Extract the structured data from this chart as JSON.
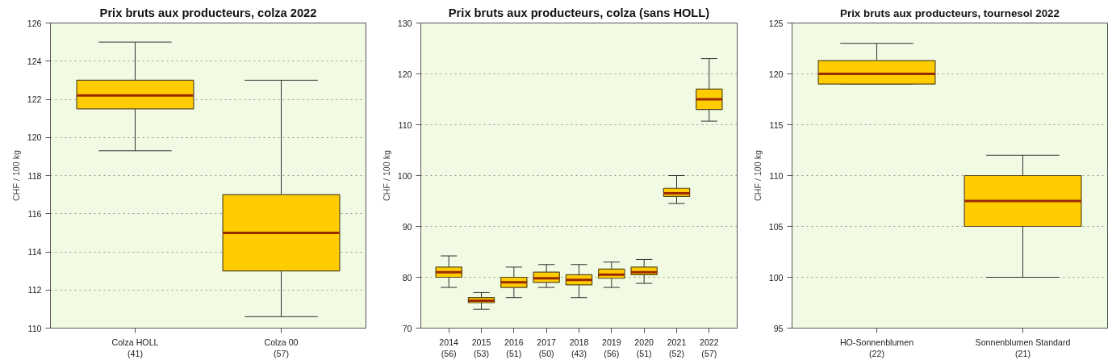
{
  "chart_data": [
    {
      "type": "box",
      "title": "Prix bruts aux producteurs, colza 2022",
      "ylabel": "CHF / 100 kg",
      "categories": [
        "Colza HOLL\n(41)",
        "Colza 00\n(57)"
      ],
      "ylim": [
        110,
        126
      ],
      "yticks": [
        110,
        112,
        114,
        116,
        118,
        120,
        122,
        124,
        126
      ],
      "grid": "y",
      "series": [
        {
          "color": "#ffcc00",
          "boxes": [
            {
              "low": 119.3,
              "q1": 121.5,
              "median": 122.2,
              "q3": 123,
              "high": 125
            },
            {
              "low": 110.6,
              "q1": 113,
              "median": 115,
              "q3": 117,
              "high": 123
            }
          ]
        }
      ]
    },
    {
      "type": "box",
      "title": "Prix bruts aux producteurs, colza (sans HOLL)",
      "ylabel": "CHF / 100 kg",
      "categories": [
        "2014\n(56)",
        "2015\n(53)",
        "2016\n(51)",
        "2017\n(50)",
        "2018\n(43)",
        "2019\n(56)",
        "2020\n(51)",
        "2021\n(52)",
        "2022\n(57)"
      ],
      "ylim": [
        70,
        130
      ],
      "yticks": [
        70,
        80,
        90,
        100,
        110,
        120,
        130
      ],
      "grid": "y",
      "series": [
        {
          "color": "#ffcc00",
          "boxes": [
            {
              "low": 78,
              "q1": 80,
              "median": 81,
              "q3": 82,
              "high": 84.2
            },
            {
              "low": 73.7,
              "q1": 75,
              "median": 75.4,
              "q3": 76,
              "high": 77
            },
            {
              "low": 76,
              "q1": 78,
              "median": 79,
              "q3": 80,
              "high": 82
            },
            {
              "low": 78,
              "q1": 79,
              "median": 79.8,
              "q3": 81,
              "high": 82.5
            },
            {
              "low": 76,
              "q1": 78.5,
              "median": 79.5,
              "q3": 80.5,
              "high": 82.5
            },
            {
              "low": 78,
              "q1": 79.8,
              "median": 80.5,
              "q3": 81.6,
              "high": 83
            },
            {
              "low": 78.8,
              "q1": 80.5,
              "median": 81,
              "q3": 82,
              "high": 83.5
            },
            {
              "low": 94.5,
              "q1": 95.9,
              "median": 96.5,
              "q3": 97.5,
              "high": 100
            },
            {
              "low": 110.7,
              "q1": 113,
              "median": 115,
              "q3": 117,
              "high": 123
            }
          ]
        }
      ]
    },
    {
      "type": "box",
      "title": "Prix bruts aux producteurs, tournesol 2022",
      "ylabel": "CHF / 100 kg",
      "categories": [
        "HO-Sonnenblumen\n(22)",
        "Sonnenblumen Standard\n(21)"
      ],
      "ylim": [
        95,
        125
      ],
      "yticks": [
        95,
        100,
        105,
        110,
        115,
        120,
        125
      ],
      "grid": "y",
      "series": [
        {
          "color": "#ffcc00",
          "boxes": [
            {
              "low": 119,
              "q1": 119,
              "median": 120,
              "q3": 121.3,
              "high": 123
            },
            {
              "low": 100,
              "q1": 105,
              "median": 107.5,
              "q3": 110,
              "high": 112
            }
          ]
        }
      ]
    }
  ]
}
